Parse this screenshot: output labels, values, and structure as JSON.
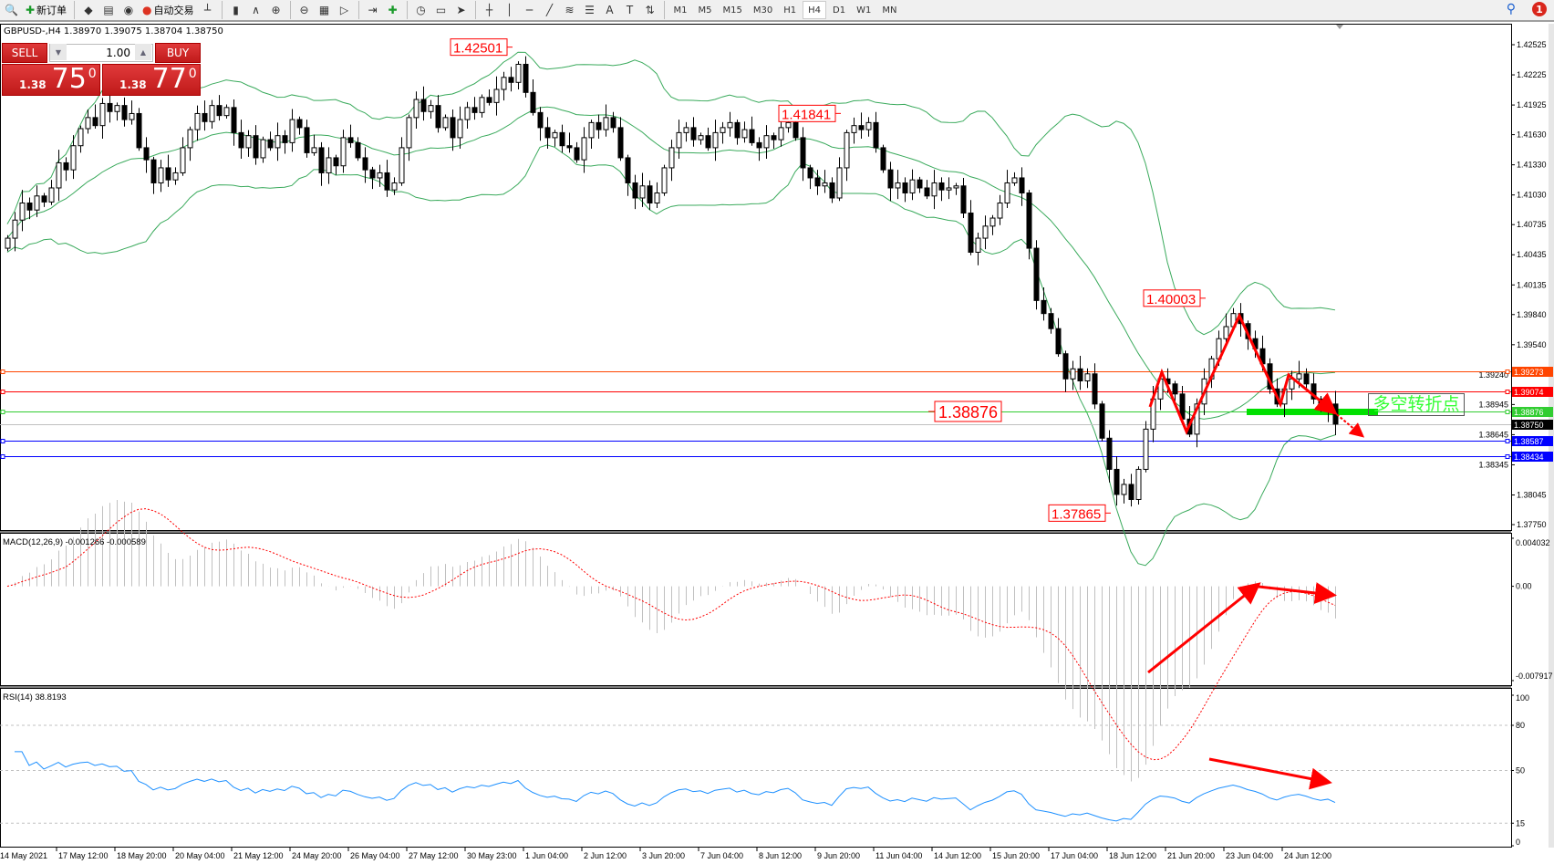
{
  "toolbar": {
    "new_order": "新订单",
    "auto_trading": "自动交易",
    "icons": [
      "zoom-icon",
      "new-order-icon",
      "market-watch-icon",
      "data-window-icon",
      "signal-icon",
      "auto-trading-icon",
      "bar-chart-icon",
      "candle-chart-icon",
      "line-chart-icon",
      "zoom-in-icon",
      "zoom-out-icon",
      "tile-windows-icon",
      "autoscroll-icon",
      "chart-shift-icon",
      "indicators-icon",
      "periods-icon",
      "templates-icon",
      "cursor-icon",
      "crosshair-icon",
      "vertical-line-icon",
      "horizontal-line-icon",
      "trendline-icon",
      "fibonacci-icon",
      "channel-icon",
      "text-icon",
      "text-label-icon",
      "arrows-icon"
    ],
    "timeframes": [
      "M1",
      "M5",
      "M15",
      "M30",
      "H1",
      "H4",
      "D1",
      "W1",
      "MN"
    ],
    "active_timeframe": "H4",
    "notification_count": "1"
  },
  "symbol_line": "GBPUSD-,H4  1.38970 1.39075 1.38704 1.38750",
  "trade_panel": {
    "sell_label": "SELL",
    "buy_label": "BUY",
    "lot": "1.00",
    "sell_prefix": "1.38",
    "sell_big": "75",
    "sell_sup": "0",
    "buy_prefix": "1.38",
    "buy_big": "77",
    "buy_sup": "0"
  },
  "annotation_text": "多空转折点",
  "colors": {
    "bull_body": "#ffffff",
    "bear_body": "#000000",
    "bands": "#3aaa5c",
    "macd_hist": "#c0c0c0",
    "macd_signal": "#ff0000",
    "rsi": "#1e90ff",
    "arrows": "#ff0000"
  },
  "chart_data": {
    "type": "candlestick",
    "symbol": "GBPUSD-",
    "timeframe": "H4",
    "first_open": 1.405,
    "close": [
      1.406,
      1.4078,
      1.4095,
      1.4088,
      1.4102,
      1.4096,
      1.411,
      1.4135,
      1.4128,
      1.4152,
      1.4169,
      1.418,
      1.4172,
      1.4194,
      1.4186,
      1.4192,
      1.4178,
      1.4184,
      1.415,
      1.4138,
      1.4115,
      1.413,
      1.4118,
      1.4125,
      1.415,
      1.4168,
      1.4184,
      1.4176,
      1.4192,
      1.4182,
      1.419,
      1.4165,
      1.415,
      1.4162,
      1.414,
      1.4158,
      1.415,
      1.4162,
      1.4155,
      1.4178,
      1.417,
      1.4145,
      1.415,
      1.4125,
      1.414,
      1.4132,
      1.416,
      1.4155,
      1.414,
      1.4128,
      1.412,
      1.4125,
      1.4108,
      1.4115,
      1.415,
      1.418,
      1.4198,
      1.4186,
      1.4192,
      1.417,
      1.418,
      1.416,
      1.4178,
      1.419,
      1.4185,
      1.42,
      1.4195,
      1.4208,
      1.422,
      1.4215,
      1.4233,
      1.4205,
      1.4185,
      1.417,
      1.416,
      1.4165,
      1.4152,
      1.415,
      1.4138,
      1.416,
      1.4175,
      1.4168,
      1.418,
      1.417,
      1.414,
      1.4115,
      1.41,
      1.4112,
      1.4095,
      1.4105,
      1.413,
      1.415,
      1.4165,
      1.417,
      1.4158,
      1.4162,
      1.415,
      1.4165,
      1.417,
      1.4175,
      1.416,
      1.4168,
      1.4155,
      1.415,
      1.4162,
      1.4158,
      1.417,
      1.4175,
      1.416,
      1.413,
      1.412,
      1.4112,
      1.4115,
      1.41,
      1.413,
      1.4165,
      1.4172,
      1.4168,
      1.4175,
      1.415,
      1.4128,
      1.411,
      1.4115,
      1.4105,
      1.4118,
      1.411,
      1.4102,
      1.4115,
      1.4108,
      1.411,
      1.4112,
      1.4085,
      1.4046,
      1.406,
      1.4072,
      1.408,
      1.4095,
      1.4115,
      1.412,
      1.4105,
      1.405,
      1.3998,
      1.3985,
      1.397,
      1.3945,
      1.392,
      1.393,
      1.3918,
      1.3925,
      1.3895,
      1.3861,
      1.383,
      1.3805,
      1.3815,
      1.38,
      1.383,
      1.387,
      1.39,
      1.392,
      1.3915,
      1.3905,
      1.388,
      1.3865,
      1.3895,
      1.392,
      1.394,
      1.396,
      1.3972,
      1.3985,
      1.3975,
      1.396,
      1.395,
      1.3935,
      1.391,
      1.3895,
      1.391,
      1.392,
      1.3925,
      1.3915,
      1.39,
      1.389,
      1.3895,
      1.3875
    ],
    "price_ticks": [
      "1.42525",
      "1.42225",
      "1.41925",
      "1.41630",
      "1.41330",
      "1.41030",
      "1.40735",
      "1.40435",
      "1.40135",
      "1.39840",
      "1.39540",
      "1.39240",
      "1.38945",
      "1.38645",
      "1.38345",
      "1.38045",
      "1.37750"
    ],
    "price_range": [
      1.377,
      1.4278
    ],
    "time_labels": [
      "14 May 2021",
      "17 May 12:00",
      "18 May 20:00",
      "20 May 04:00",
      "21 May 12:00",
      "24 May 20:00",
      "26 May 04:00",
      "27 May 12:00",
      "30 May 23:00",
      "1 Jun 04:00",
      "2 Jun 12:00",
      "3 Jun 20:00",
      "7 Jun 04:00",
      "8 Jun 12:00",
      "9 Jun 20:00",
      "11 Jun 04:00",
      "14 Jun 12:00",
      "15 Jun 20:00",
      "17 Jun 04:00",
      "18 Jun 12:00",
      "21 Jun 20:00",
      "23 Jun 04:00",
      "24 Jun 12:00"
    ],
    "price_labels": [
      {
        "text": "1.42501",
        "price": 1.42501,
        "bar": 69
      },
      {
        "text": "1.41841",
        "price": 1.41841,
        "bar": 114
      },
      {
        "text": "1.40003",
        "price": 1.40003,
        "bar": 164
      },
      {
        "text": "1.37865",
        "price": 1.37865,
        "bar": 151
      }
    ],
    "level_label": {
      "text": "1.38876",
      "price": 1.38876
    },
    "hlines": [
      {
        "price": "1.39273",
        "color": "#ff4500"
      },
      {
        "price": "1.39074",
        "color": "#ff0000"
      },
      {
        "price": "1.38876",
        "color": "#32cd32"
      },
      {
        "price": "1.38750",
        "color": "#000000",
        "bid": true
      },
      {
        "price": "1.38587",
        "color": "#0000ff"
      },
      {
        "price": "1.38434",
        "color": "#0000ff"
      }
    ],
    "macd": {
      "label": "MACD(12,26,9) -0.001266 -0.000589",
      "params": [
        12,
        26,
        9
      ],
      "ticks": [
        "0.004032",
        "0.00",
        "-0.007917"
      ],
      "range": [
        -0.007917,
        0.004032
      ]
    },
    "rsi": {
      "label": "RSI(14) 38.8193",
      "period": 14,
      "ticks": [
        "100",
        "80",
        "50",
        "15",
        "0"
      ],
      "levels": [
        80,
        50,
        15
      ],
      "range": [
        0,
        100
      ]
    },
    "bands": {
      "period": 20,
      "deviation": 2
    }
  }
}
